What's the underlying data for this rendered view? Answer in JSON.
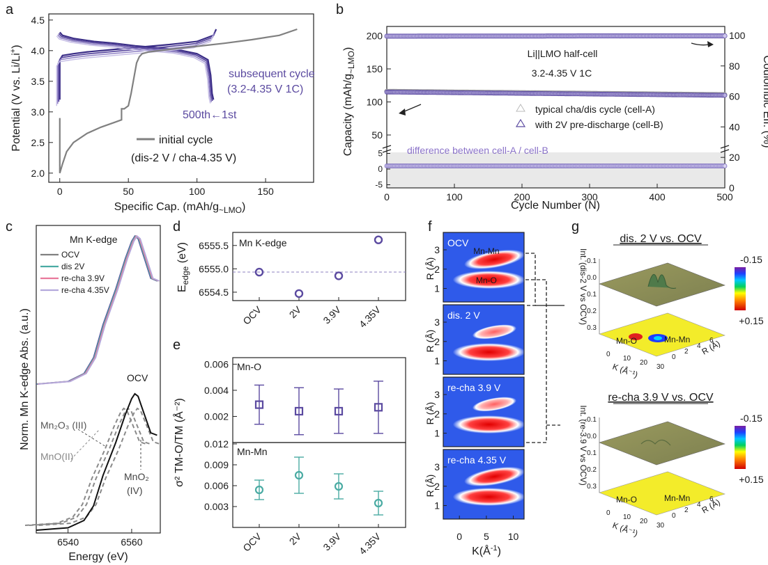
{
  "panel_letters": [
    "a",
    "b",
    "c",
    "d",
    "e",
    "f",
    "g"
  ],
  "colors": {
    "purple": "#5b4aa0",
    "gray": "#808080",
    "teal": "#4aaba3",
    "pink": "#e8799b",
    "lavender": "#b4a9dc",
    "dashed_gray": "#8a8a8a"
  },
  "chart_data": [
    {
      "panel": "a",
      "type": "line",
      "xlabel": "Specific Cap. (mAh/g",
      "xlabel_sub": "~LMO",
      "xlabel_end": ")",
      "ylabel": "Potential (V vs. Li/Li",
      "ylabel_sup": "+",
      "ylabel_end": ")",
      "xlim": [
        -8,
        185
      ],
      "ylim": [
        1.85,
        4.6
      ],
      "xticks": [
        "0",
        "50",
        "100",
        "150"
      ],
      "yticks": [
        "2.0",
        "2.5",
        "3.0",
        "3.5",
        "4.0",
        "4.5"
      ],
      "annotations": {
        "subsequent": "subsequent cycle",
        "subsequent_cond": "(3.2-4.35 V 1C)",
        "range": "500th←1st",
        "legend_label": "initial cycle",
        "legend_cond": "(dis-2 V / cha-4.35 V)"
      },
      "series": [
        {
          "name": "initial cycle",
          "x": [
            0,
            0,
            2,
            5,
            10,
            20,
            30,
            40,
            45,
            45,
            47,
            50,
            52,
            56,
            58,
            60,
            65,
            80,
            100,
            120,
            140,
            160,
            173
          ],
          "y": [
            2.9,
            2.0,
            2.15,
            2.35,
            2.5,
            2.65,
            2.75,
            2.83,
            2.87,
            3.05,
            3.05,
            3.1,
            3.3,
            3.8,
            3.9,
            3.95,
            3.98,
            4.02,
            4.07,
            4.12,
            4.18,
            4.25,
            4.35
          ]
        },
        {
          "name": "subsequent cycle charge",
          "x": [
            0,
            0,
            2,
            10,
            20,
            40,
            60,
            80,
            100,
            112,
            114
          ],
          "y": [
            3.2,
            3.85,
            3.92,
            3.95,
            3.98,
            4.02,
            4.06,
            4.1,
            4.15,
            4.25,
            4.35
          ]
        },
        {
          "name": "subsequent cycle discharge",
          "x": [
            0,
            2,
            10,
            25,
            40,
            55,
            70,
            85,
            100,
            108,
            110,
            111,
            112
          ],
          "y": [
            4.3,
            4.25,
            4.2,
            4.15,
            4.12,
            4.08,
            4.05,
            4.02,
            3.95,
            3.85,
            3.6,
            3.3,
            3.2
          ]
        }
      ]
    },
    {
      "panel": "b",
      "type": "scatter",
      "xlabel": "Cycle Number (N)",
      "ylabel": "Capacity (mAh/g",
      "ylabel_sub": "~LMO",
      "ylabel_end": ")",
      "ylabel2": "Coulombic Eff. (%)",
      "xlim": [
        0,
        500
      ],
      "xticks": [
        "0",
        "100",
        "200",
        "300",
        "400",
        "500"
      ],
      "yticks_upper": [
        "50",
        "100",
        "150",
        "200"
      ],
      "yticks_lower": [
        "5",
        "0",
        "-5"
      ],
      "yticks_right": [
        "0",
        "20",
        "40",
        "60",
        "80",
        "100"
      ],
      "annotations": {
        "cell": "Li||LMO half-cell",
        "cond": "3.2-4.35 V 1C",
        "diff": "difference between cell-A / cell-B"
      },
      "legend": [
        "typical cha/dis cycle (cell-A)",
        "with 2V pre-discharge (cell-B)"
      ],
      "series": [
        {
          "name": "Coulombic efficiency",
          "x": [
            0,
            100,
            200,
            300,
            400,
            500
          ],
          "y": [
            99.5,
            99.6,
            99.6,
            99.7,
            99.7,
            99.7
          ]
        },
        {
          "name": "typical cha/dis cycle (cell-A)",
          "x": [
            0,
            100,
            200,
            300,
            400,
            500
          ],
          "y": [
            116,
            115,
            114,
            113,
            112,
            111
          ]
        },
        {
          "name": "with 2V pre-discharge (cell-B)",
          "x": [
            0,
            100,
            200,
            300,
            400,
            500
          ],
          "y": [
            115,
            114,
            113,
            112,
            111,
            110
          ]
        },
        {
          "name": "difference between cell-A / cell-B",
          "x": [
            0,
            100,
            200,
            300,
            400,
            500
          ],
          "y": [
            1,
            1,
            1,
            1,
            1,
            1
          ]
        }
      ]
    },
    {
      "panel": "c",
      "type": "line",
      "title": "Mn K-edge",
      "xlabel": "Energy (eV)",
      "ylabel": "Norm. Mn K-edge Abs. (a.u.)",
      "xlim": [
        6530,
        6569
      ],
      "xticks": [
        "6540",
        "6560"
      ],
      "legend": [
        "OCV",
        "dis 2V",
        "re-cha 3.9V",
        "re-cha 4.35V"
      ],
      "ref_labels": {
        "ocv": "OCV",
        "mn2o3": "Mn₂O₃ (III)",
        "mno": "MnO(II)",
        "mno2": "MnO₂",
        "mno2_ox": "(IV)"
      },
      "series": [
        {
          "name": "OCV",
          "x": [
            6530,
            6540,
            6545,
            6548,
            6551,
            6555,
            6558,
            6560,
            6561,
            6562,
            6564,
            6566,
            6568
          ],
          "y": [
            0.0,
            0.02,
            0.08,
            0.2,
            0.45,
            0.72,
            0.95,
            1.08,
            1.12,
            1.1,
            0.95,
            0.8,
            0.78
          ]
        }
      ]
    },
    {
      "panel": "d",
      "type": "scatter",
      "title": "Mn K-edge",
      "ylabel": "E",
      "ylabel_sub": "edge",
      "ylabel_end": " (eV)",
      "categories": [
        "OCV",
        "2V",
        "3.9V",
        "4.35V"
      ],
      "values": [
        6554.93,
        6554.47,
        6554.85,
        6555.62
      ],
      "reference_line": 6554.93,
      "ylim": [
        6554.32,
        6555.78
      ],
      "yticks": [
        "6554.5",
        "6555.0",
        "6555.5"
      ]
    },
    {
      "panel": "e",
      "type": "scatter",
      "ylabel": "σ² TM-O/TM (Å⁻²)",
      "categories": [
        "OCV",
        "2V",
        "3.9V",
        "4.35V"
      ],
      "series": [
        {
          "name": "Mn-O",
          "values": [
            0.0029,
            0.0024,
            0.0024,
            0.0027
          ],
          "errors": [
            0.0015,
            0.0018,
            0.0017,
            0.002
          ],
          "ylim": [
            0.0,
            0.0065
          ],
          "yticks": [
            "0.006",
            "0.004",
            "0.002"
          ]
        },
        {
          "name": "Mn-Mn",
          "values": [
            0.0054,
            0.0075,
            0.0059,
            0.0035
          ],
          "errors": [
            0.0014,
            0.0026,
            0.0018,
            0.0017
          ],
          "ylim": [
            0.0,
            0.0122
          ],
          "yticks": [
            "0.012",
            "0.009",
            "0.006",
            "0.003"
          ]
        }
      ]
    },
    {
      "panel": "f",
      "type": "heatmap",
      "xlabel": "K(Å",
      "xlabel_sup": "-1",
      "xlabel_end": ")",
      "ylabel": "R (Å)",
      "xticks": [
        "0",
        "5",
        "10"
      ],
      "yticks": [
        "1",
        "2",
        "3"
      ],
      "panels": [
        "OCV",
        "dis. 2 V",
        "re-cha 3.9 V",
        "re-cha 4.35 V"
      ],
      "peak_labels": {
        "mnmn": "Mn-Mn",
        "mno": "Mn-O"
      }
    },
    {
      "panel": "g",
      "type": "heatmap",
      "titles": [
        "dis. 2 V vs. OCV",
        "re-cha 3.9 V vs. OCV"
      ],
      "zlabels": [
        "Int. (dis-2 V vs OCV)",
        "Int. (re-3.9 V vs OCV)"
      ],
      "colorbar": [
        "-0.15",
        "+0.15"
      ],
      "zticks": [
        "-0.1",
        "0.0",
        "0.1",
        "0.2",
        "0.3"
      ],
      "kticks": [
        "0",
        "10",
        "20",
        "30"
      ],
      "rticks": [
        "0",
        "2",
        "4",
        "6"
      ],
      "kaxis": "K (Å⁻¹)",
      "raxis": "R (Å)",
      "peak_labels": {
        "mno": "Mn-O",
        "mnmn": "Mn-Mn"
      }
    }
  ]
}
